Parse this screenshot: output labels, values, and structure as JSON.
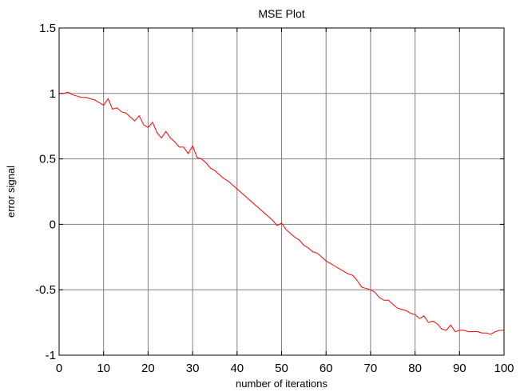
{
  "chart_data": {
    "type": "line",
    "title": "MSE Plot",
    "xlabel": "number of iterations",
    "ylabel": "error signal",
    "xlim": [
      0,
      100
    ],
    "ylim": [
      -1,
      1.5
    ],
    "xticks": [
      0,
      10,
      20,
      30,
      40,
      50,
      60,
      70,
      80,
      90,
      100
    ],
    "yticks": [
      -1,
      -0.5,
      0,
      0.5,
      1,
      1.5
    ],
    "xtick_labels": [
      "0",
      "10",
      "20",
      "30",
      "40",
      "50",
      "60",
      "70",
      "80",
      "90",
      "100"
    ],
    "ytick_labels": [
      "-1",
      "-0.5",
      "0",
      "0.5",
      "1",
      "1.5"
    ],
    "grid": true,
    "series": [
      {
        "color": "#ff0000",
        "x": [
          0,
          1,
          2,
          3,
          4,
          5,
          6,
          7,
          8,
          9,
          10,
          11,
          12,
          13,
          14,
          15,
          16,
          17,
          18,
          19,
          20,
          21,
          22,
          23,
          24,
          25,
          26,
          27,
          28,
          29,
          30,
          31,
          32,
          33,
          34,
          35,
          36,
          37,
          38,
          39,
          40,
          41,
          42,
          43,
          44,
          45,
          46,
          47,
          48,
          49,
          50,
          51,
          52,
          53,
          54,
          55,
          56,
          57,
          58,
          59,
          60,
          61,
          62,
          63,
          64,
          65,
          66,
          67,
          68,
          69,
          70,
          71,
          72,
          73,
          74,
          75,
          76,
          77,
          78,
          79,
          80,
          81,
          82,
          83,
          84,
          85,
          86,
          87,
          88,
          89,
          90,
          91,
          92,
          93,
          94,
          95,
          96,
          97,
          98,
          99,
          100
        ],
        "y": [
          1.0,
          1.0,
          1.01,
          0.99,
          0.98,
          0.97,
          0.97,
          0.96,
          0.95,
          0.93,
          0.91,
          0.96,
          0.88,
          0.89,
          0.86,
          0.85,
          0.82,
          0.79,
          0.83,
          0.76,
          0.74,
          0.78,
          0.7,
          0.66,
          0.71,
          0.66,
          0.63,
          0.59,
          0.59,
          0.54,
          0.6,
          0.51,
          0.5,
          0.47,
          0.43,
          0.41,
          0.38,
          0.35,
          0.33,
          0.3,
          0.27,
          0.24,
          0.21,
          0.18,
          0.15,
          0.12,
          0.09,
          0.06,
          0.03,
          -0.01,
          0.01,
          -0.04,
          -0.07,
          -0.1,
          -0.12,
          -0.16,
          -0.18,
          -0.21,
          -0.22,
          -0.25,
          -0.28,
          -0.3,
          -0.32,
          -0.34,
          -0.36,
          -0.38,
          -0.39,
          -0.43,
          -0.48,
          -0.49,
          -0.5,
          -0.52,
          -0.56,
          -0.58,
          -0.58,
          -0.61,
          -0.64,
          -0.65,
          -0.66,
          -0.68,
          -0.69,
          -0.72,
          -0.7,
          -0.75,
          -0.74,
          -0.76,
          -0.8,
          -0.81,
          -0.77,
          -0.82,
          -0.81,
          -0.81,
          -0.82,
          -0.82,
          -0.82,
          -0.83,
          -0.83,
          -0.84,
          -0.82,
          -0.81,
          -0.81
        ]
      }
    ]
  }
}
